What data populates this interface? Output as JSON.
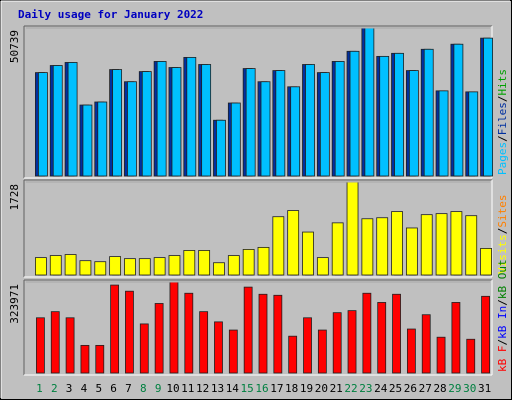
{
  "chart_data": {
    "type": "bar",
    "title": "Daily usage for January 2022",
    "title_color": "#0000c0",
    "categories": [
      "1",
      "2",
      "3",
      "4",
      "5",
      "6",
      "7",
      "8",
      "9",
      "10",
      "11",
      "12",
      "13",
      "14",
      "15",
      "16",
      "17",
      "18",
      "19",
      "20",
      "21",
      "22",
      "23",
      "24",
      "25",
      "26",
      "27",
      "28",
      "29",
      "30",
      "31"
    ],
    "category_colors": [
      "#008040",
      "#008040",
      "#000000",
      "#000000",
      "#000000",
      "#000000",
      "#000000",
      "#008040",
      "#008040",
      "#000000",
      "#000000",
      "#000000",
      "#000000",
      "#000000",
      "#008040",
      "#008040",
      "#000000",
      "#000000",
      "#000000",
      "#000000",
      "#000000",
      "#008040",
      "#008040",
      "#000000",
      "#000000",
      "#000000",
      "#000000",
      "#000000",
      "#008040",
      "#008040",
      "#000000"
    ],
    "legend_separator": "/",
    "panels": [
      {
        "ylim": [
          0,
          50739
        ],
        "yticks": [
          50739
        ],
        "series": [
          {
            "name": "Pages",
            "color": "#00c0ff",
            "values": [
              35448,
              37880,
              38923,
              24327,
              25369,
              36490,
              32320,
              35795,
              39270,
              37185,
              40660,
              38228,
              19114,
              25022,
              36838,
              32320,
              36143,
              30582,
              38228,
              35448,
              39270,
              42745,
              50739,
              41008,
              42050,
              36143,
              43441,
              29192,
              45179,
              28845,
              47264
            ]
          },
          {
            "name": "Files",
            "color": "#0030a0",
            "values": [
              35448,
              37880,
              38923,
              24327,
              25369,
              36490,
              32320,
              35795,
              39270,
              37185,
              40660,
              38228,
              19114,
              25022,
              36838,
              32320,
              36143,
              30582,
              38228,
              35448,
              39270,
              42745,
              50739,
              41008,
              42050,
              36143,
              43441,
              29192,
              45179,
              28845,
              47264
            ]
          },
          {
            "name": "Hits",
            "color": "#00a000",
            "values": [
              null,
              null,
              null,
              null,
              null,
              null,
              null,
              null,
              null,
              null,
              null,
              null,
              null,
              null,
              null,
              null,
              null,
              null,
              null,
              null,
              null,
              null,
              null,
              null,
              null,
              null,
              null,
              null,
              null,
              null,
              null
            ]
          }
        ]
      },
      {
        "ylim": [
          0,
          1728
        ],
        "yticks": [
          1728
        ],
        "series": [
          {
            "name": "Visits",
            "color": "#ffff00",
            "values": [
              323,
              361,
              380,
              266,
              247,
              342,
              304,
              304,
              323,
              361,
              456,
              456,
              228,
              361,
              475,
              513,
              1083,
              1197,
              798,
              323,
              969,
              1728,
              1045,
              1064,
              1178,
              874,
              1121,
              1140,
              1178,
              1102,
              494
            ]
          },
          {
            "name": "Sites",
            "color": "#ff8000",
            "values": [
              76,
              76,
              76,
              76,
              76,
              76,
              76,
              76,
              76,
              76,
              76,
              76,
              76,
              76,
              76,
              76,
              665,
              855,
              551,
              76,
              551,
              1178,
              570,
              741,
              741,
              627,
              779,
              779,
              703,
              646,
              114
            ]
          }
        ]
      },
      {
        "ylim": [
          0,
          323971
        ],
        "yticks": [
          323971
        ],
        "series": [
          {
            "name": "kB F",
            "color": "#ff0000",
            "values": [
              196560,
              218400,
              196560,
              98280,
              98280,
              313040,
              291200,
              174720,
              247520,
              323971,
              283920,
              218400,
              182000,
              152880,
              305760,
              280280,
              276640,
              131040,
              196560,
              152880,
              214760,
              222040,
              283920,
              251160,
              280280,
              156520,
              207480,
              127400,
              251160,
              120120,
              273000
            ]
          },
          {
            "name": "kB In",
            "color": "#0000ff",
            "values": [
              null,
              null,
              null,
              null,
              null,
              null,
              null,
              null,
              null,
              null,
              null,
              null,
              null,
              null,
              null,
              null,
              null,
              null,
              null,
              null,
              null,
              null,
              null,
              null,
              null,
              null,
              null,
              null,
              null,
              null,
              null
            ]
          },
          {
            "name": "kB Out",
            "color": "#008000",
            "values": [
              null,
              null,
              null,
              null,
              null,
              null,
              null,
              null,
              null,
              null,
              null,
              null,
              null,
              null,
              null,
              null,
              null,
              null,
              null,
              null,
              null,
              null,
              null,
              null,
              null,
              null,
              null,
              null,
              null,
              null,
              null
            ]
          }
        ]
      }
    ]
  }
}
